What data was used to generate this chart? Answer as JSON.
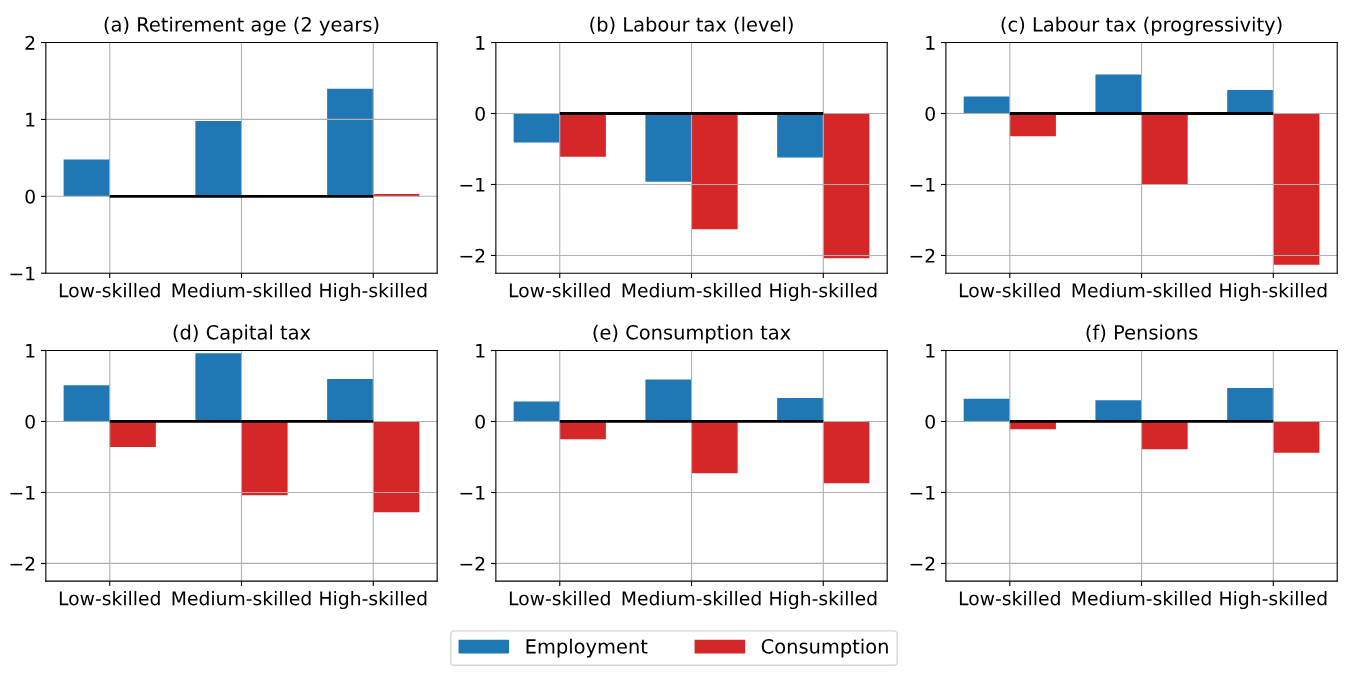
{
  "chart_data": [
    {
      "type": "bar",
      "title": "(a) Retirement age (2 years)",
      "categories": [
        "Low-skilled",
        "Medium-skilled",
        "High-skilled"
      ],
      "series": [
        {
          "name": "Employment",
          "color": "#1f77b4",
          "values": [
            0.48,
            0.98,
            1.4
          ]
        },
        {
          "name": "Consumption",
          "color": "#d62728",
          "values": [
            null,
            null,
            0.03
          ]
        },
        {
          "type": "line",
          "color": "#000000",
          "values": [
            0,
            0,
            0
          ]
        }
      ],
      "ylim": [
        -1,
        2
      ],
      "yticks": [
        -1,
        0,
        1,
        2
      ],
      "grid": true,
      "legend": "bottom"
    },
    {
      "type": "bar",
      "title": "(b) Labour tax (level)",
      "categories": [
        "Low-skilled",
        "Medium-skilled",
        "High-skilled"
      ],
      "series": [
        {
          "color": "#1f77b4",
          "values": [
            -0.41,
            -0.96,
            -0.62
          ]
        },
        {
          "color": "#d62728",
          "values": [
            -0.61,
            -1.63,
            -2.04
          ]
        },
        {
          "type": "line",
          "color": "#000000",
          "values": [
            0,
            0,
            0
          ]
        }
      ],
      "ylim": [
        -2.25,
        1
      ],
      "yticks": [
        -2,
        -1,
        0,
        1
      ],
      "grid": true
    },
    {
      "type": "bar",
      "title": "(c) Labour tax (progressivity)",
      "categories": [
        "Low-skilled",
        "Medium-skilled",
        "High-skilled"
      ],
      "series": [
        {
          "color": "#1f77b4",
          "values": [
            0.24,
            0.55,
            0.33
          ]
        },
        {
          "color": "#d62728",
          "values": [
            -0.32,
            -1.0,
            -2.13
          ]
        },
        {
          "type": "line",
          "color": "#000000",
          "values": [
            0,
            0,
            0
          ]
        }
      ],
      "ylim": [
        -2.25,
        1
      ],
      "yticks": [
        -2,
        -1,
        0,
        1
      ],
      "grid": true
    },
    {
      "type": "bar",
      "title": "(d) Capital tax",
      "categories": [
        "Low-skilled",
        "Medium-skilled",
        "High-skilled"
      ],
      "series": [
        {
          "color": "#1f77b4",
          "values": [
            0.51,
            0.96,
            0.6
          ]
        },
        {
          "color": "#d62728",
          "values": [
            -0.36,
            -1.04,
            -1.28
          ]
        },
        {
          "type": "line",
          "color": "#000000",
          "values": [
            0,
            0,
            0
          ]
        }
      ],
      "ylim": [
        -2.25,
        1
      ],
      "yticks": [
        -2,
        -1,
        0,
        1
      ],
      "grid": true
    },
    {
      "type": "bar",
      "title": "(e) Consumption tax",
      "categories": [
        "Low-skilled",
        "Medium-skilled",
        "High-skilled"
      ],
      "series": [
        {
          "color": "#1f77b4",
          "values": [
            0.28,
            0.59,
            0.33
          ]
        },
        {
          "color": "#d62728",
          "values": [
            -0.25,
            -0.73,
            -0.87
          ]
        },
        {
          "type": "line",
          "color": "#000000",
          "values": [
            0,
            0,
            0
          ]
        }
      ],
      "ylim": [
        -2.25,
        1
      ],
      "yticks": [
        -2,
        -1,
        0,
        1
      ],
      "grid": true
    },
    {
      "type": "bar",
      "title": "(f) Pensions",
      "categories": [
        "Low-skilled",
        "Medium-skilled",
        "High-skilled"
      ],
      "series": [
        {
          "color": "#1f77b4",
          "values": [
            0.32,
            0.3,
            0.47
          ]
        },
        {
          "color": "#d62728",
          "values": [
            -0.11,
            -0.39,
            -0.44
          ]
        },
        {
          "type": "line",
          "color": "#000000",
          "values": [
            0,
            0,
            0
          ]
        }
      ],
      "ylim": [
        -2.25,
        1
      ],
      "yticks": [
        -2,
        -1,
        0,
        1
      ],
      "grid": true
    }
  ]
}
